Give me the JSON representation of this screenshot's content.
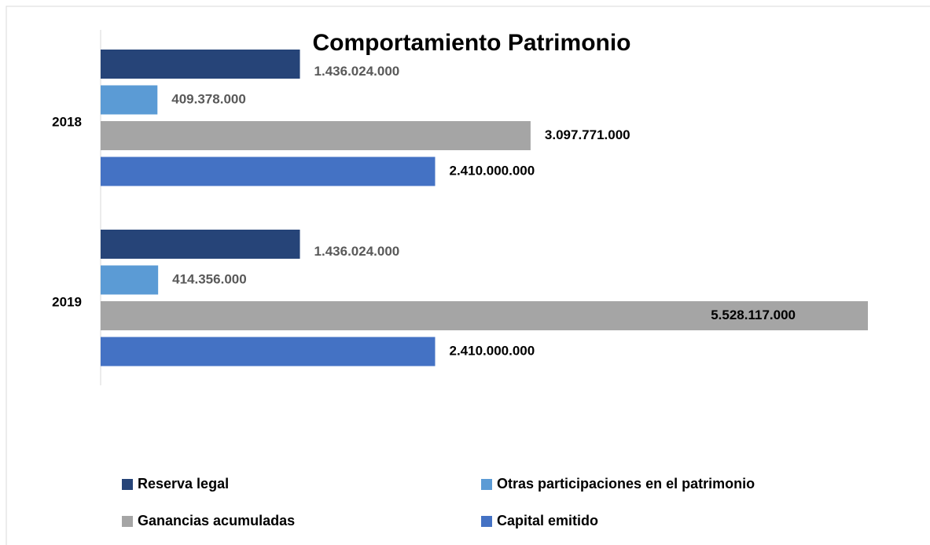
{
  "chart_data": {
    "type": "bar",
    "orientation": "horizontal",
    "title": "Comportamiento Patrimonio",
    "categories": [
      "2018",
      "2019"
    ],
    "series": [
      {
        "name": "Reserva legal",
        "color": "#264478",
        "values": [
          1436024000,
          1436024000
        ],
        "value_labels": [
          "1.436.024.000",
          "1.436.024.000"
        ]
      },
      {
        "name": "Otras participaciones en el patrimonio",
        "color": "#5b9bd5",
        "values": [
          409378000,
          414356000
        ],
        "value_labels": [
          "409.378.000",
          "414.356.000"
        ]
      },
      {
        "name": "Ganancias acumuladas",
        "color": "#a5a5a5",
        "values": [
          3097771000,
          5528117000
        ],
        "value_labels": [
          "3.097.771.000",
          "5.528.117.000"
        ]
      },
      {
        "name": "Capital emitido",
        "color": "#4472c4",
        "values": [
          2410000000,
          2410000000
        ],
        "value_labels": [
          "2.410.000.000",
          "2.410.000.000"
        ]
      }
    ],
    "xlim": [
      0,
      5528117000
    ],
    "legend": "bottom"
  }
}
